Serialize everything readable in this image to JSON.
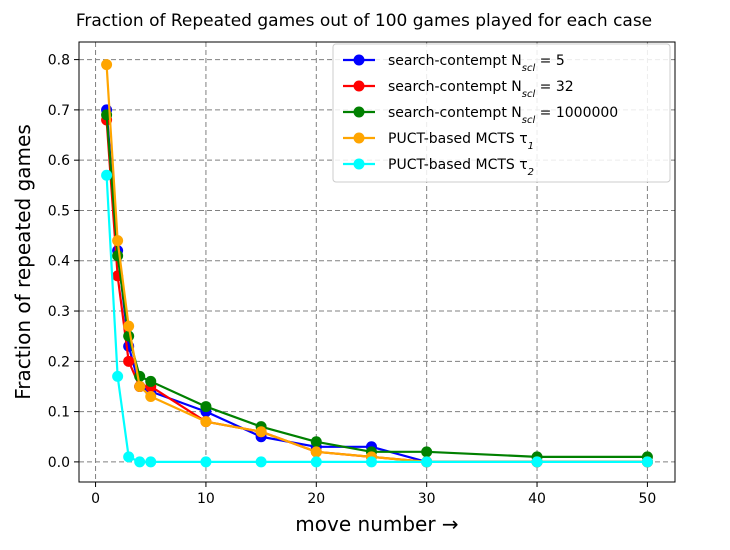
{
  "chart_data": {
    "type": "line",
    "title": "Fraction of Repeated games out of 100 games played for each case",
    "xlabel": "move number →",
    "ylabel": "Fraction of repeated games",
    "xlim": [
      -1.5,
      52.5
    ],
    "ylim": [
      -0.04,
      0.835
    ],
    "xticks": [
      0,
      10,
      20,
      30,
      40,
      50
    ],
    "yticks": [
      0.0,
      0.1,
      0.2,
      0.3,
      0.4,
      0.5,
      0.6,
      0.7,
      0.8
    ],
    "grid": true,
    "legend_position": "top-right",
    "series": [
      {
        "name_main": "search-contempt N",
        "name_sub": "scl",
        "name_tail": " = 5",
        "color": "#0000ff",
        "x": [
          1,
          2,
          3,
          4,
          5,
          10,
          15,
          20,
          25,
          30,
          40,
          50
        ],
        "y": [
          0.7,
          0.42,
          0.23,
          0.15,
          0.14,
          0.1,
          0.05,
          0.03,
          0.03,
          0.0,
          0.0,
          0.0
        ]
      },
      {
        "name_main": "search-contempt N",
        "name_sub": "scl",
        "name_tail": " = 32",
        "color": "#ff0000",
        "x": [
          1,
          2,
          3,
          4,
          5,
          10,
          15,
          20,
          25,
          30,
          40,
          50
        ],
        "y": [
          0.68,
          0.37,
          0.2,
          0.15,
          0.15,
          0.08,
          0.06,
          0.02,
          0.01,
          0.0,
          0.0,
          0.0
        ]
      },
      {
        "name_main": "search-contempt N",
        "name_sub": "scl",
        "name_tail": " = 1000000",
        "color": "#008000",
        "x": [
          1,
          2,
          3,
          4,
          5,
          10,
          15,
          20,
          25,
          30,
          40,
          50
        ],
        "y": [
          0.69,
          0.41,
          0.25,
          0.17,
          0.16,
          0.11,
          0.07,
          0.04,
          0.02,
          0.02,
          0.01,
          0.01
        ]
      },
      {
        "name_main": "PUCT-based MCTS τ",
        "name_sub": "1",
        "name_tail": "",
        "color": "#ffa500",
        "x": [
          1,
          2,
          3,
          4,
          5,
          10,
          15,
          20,
          25,
          30,
          40,
          50
        ],
        "y": [
          0.79,
          0.44,
          0.27,
          0.15,
          0.13,
          0.08,
          0.06,
          0.02,
          0.01,
          0.0,
          0.0,
          0.0
        ]
      },
      {
        "name_main": "PUCT-based MCTS τ",
        "name_sub": "2",
        "name_tail": "",
        "color": "#00ffff",
        "x": [
          1,
          2,
          3,
          4,
          5,
          10,
          15,
          20,
          25,
          30,
          40,
          50
        ],
        "y": [
          0.57,
          0.17,
          0.01,
          0.0,
          0.0,
          0.0,
          0.0,
          0.0,
          0.0,
          0.0,
          0.0,
          0.0
        ]
      }
    ]
  }
}
